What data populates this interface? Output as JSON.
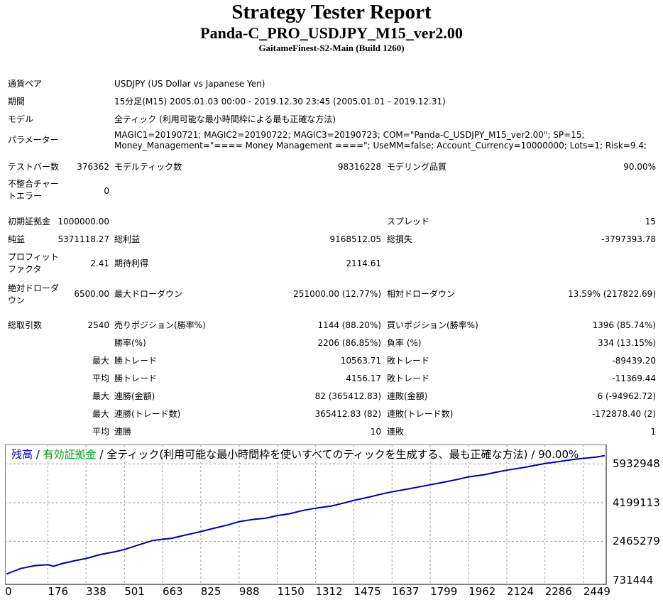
{
  "header": {
    "title": "Strategy Tester Report",
    "subtitle": "Panda-C_PRO_USDJPY_M15_ver2.00",
    "server": "GaitameFinest-S2-Main (Build 1260)"
  },
  "info": {
    "pair_label": "通貨ペア",
    "pair_value": "USDJPY (US Dollar vs Japanese Yen)",
    "period_label": "期間",
    "period_value": "15分足(M15) 2005.01.03 00:00 - 2019.12.30 23:45 (2005.01.01 - 2019.12.31)",
    "model_label": "モデル",
    "model_value": "全ティック (利用可能な最小時間枠による最も正確な方法)",
    "params_label": "パラメーター",
    "params_value": "MAGIC1=20190721; MAGIC2=20190722; MAGIC3=20190723; COM=\"Panda-C_USDJPY_M15_ver2.00\"; SP=15; Money_Management=\"==== Money Management ====\"; UseMM=false; Account_Currency=10000000; Lots=1; Risk=9.4;"
  },
  "stats": {
    "bars_label": "テストバー数",
    "bars_value": "376362",
    "ticks_label": "モデルティック数",
    "ticks_value": "98316228",
    "quality_label": "モデリング品質",
    "quality_value": "90.00%",
    "mismatch_label": "不整合チャートエラー",
    "mismatch_value": "0",
    "deposit_label": "初期証拠金",
    "deposit_value": "1000000.00",
    "spread_label": "スプレッド",
    "spread_value": "15",
    "net_label": "純益",
    "net_value": "5371118.27",
    "gross_profit_label": "総利益",
    "gross_profit_value": "9168512.05",
    "gross_loss_label": "総損失",
    "gross_loss_value": "-3797393.78",
    "pf_label": "プロフィットファクタ",
    "pf_value": "2.41",
    "expected_label": "期待利得",
    "expected_value": "2114.61",
    "abs_dd_label": "絶対ドローダウン",
    "abs_dd_value": "6500.00",
    "max_dd_label": "最大ドローダウン",
    "max_dd_value": "251000.00 (12.77%)",
    "rel_dd_label": "相対ドローダウン",
    "rel_dd_value": "13.59% (217822.69)",
    "total_trades_label": "総取引数",
    "total_trades_value": "2540",
    "short_label": "売りポジション(勝率%)",
    "short_value": "1144 (88.20%)",
    "long_label": "買いポジション(勝率%)",
    "long_value": "1396 (85.74%)",
    "win_rate_label": "勝率(%)",
    "win_rate_value": "2206 (86.85%)",
    "loss_rate_label": "負率 (%)",
    "loss_rate_value": "334 (13.15%)",
    "largest_prefix": "最大",
    "largest_win_label": "勝トレード",
    "largest_win_value": "10563.71",
    "largest_loss_label": "敗トレード",
    "largest_loss_value": "-89439.20",
    "average_prefix": "平均",
    "avg_win_label": "勝トレード",
    "avg_win_value": "4156.17",
    "avg_loss_label": "敗トレード",
    "avg_loss_value": "-11369.44",
    "max_prefix": "最大",
    "max_cons_wins_label": "連勝(金額)",
    "max_cons_wins_value": "82 (365412.83)",
    "max_cons_losses_label": "連敗(金額)",
    "max_cons_losses_value": "6 (-94962.72)",
    "max2_prefix": "最大",
    "max_cons_profit_label": "連勝(トレード数)",
    "max_cons_profit_value": "365412.83 (82)",
    "max_cons_loss_label": "連敗(トレード数)",
    "max_cons_loss_value": "-172878.40 (2)",
    "avg2_prefix": "平均",
    "avg_cons_wins_label": "連勝",
    "avg_cons_wins_value": "10",
    "avg_cons_losses_label": "連敗",
    "avg_cons_losses_value": "1"
  },
  "chart_data": {
    "type": "line",
    "legend": {
      "balance": "残高",
      "sep1": " / ",
      "equity": "有効証拠金",
      "sep2": " / ",
      "model": "全ティック(利用可能な最小時間枠を使いすべてのティックを生成する、最も正確な方法)",
      "sep3": " / ",
      "quality": "90.00%"
    },
    "y_ticks": [
      "5932948",
      "4199113",
      "2465279",
      "731444"
    ],
    "y_tick_values": [
      5932948,
      4199113,
      2465279,
      731444
    ],
    "x_ticks": [
      "0",
      "176",
      "338",
      "501",
      "663",
      "825",
      "988",
      "1150",
      "1312",
      "1475",
      "1637",
      "1799",
      "1962",
      "2124",
      "2286",
      "2449"
    ],
    "x_tick_values": [
      0,
      176,
      338,
      501,
      663,
      825,
      988,
      1150,
      1312,
      1475,
      1637,
      1799,
      1962,
      2124,
      2286,
      2449
    ],
    "xlim": [
      0,
      2540
    ],
    "ylim": [
      731444,
      6800000
    ],
    "grid": true,
    "series": [
      {
        "color": "#0000a0",
        "x": [
          0,
          60,
          120,
          176,
          200,
          240,
          300,
          338,
          400,
          460,
          501,
          560,
          620,
          663,
          700,
          760,
          825,
          880,
          940,
          988,
          1050,
          1100,
          1150,
          1200,
          1260,
          1312,
          1380,
          1440,
          1475,
          1540,
          1600,
          1637,
          1700,
          1760,
          1799,
          1860,
          1920,
          1962,
          2030,
          2080,
          2124,
          2200,
          2250,
          2286,
          2350,
          2400,
          2449,
          2500,
          2540
        ],
        "y": [
          1000000,
          1250000,
          1380000,
          1420000,
          1350000,
          1480000,
          1620000,
          1700000,
          1880000,
          2000000,
          2100000,
          2300000,
          2500000,
          2560000,
          2600000,
          2750000,
          2900000,
          3050000,
          3200000,
          3350000,
          3450000,
          3500000,
          3620000,
          3700000,
          3850000,
          3950000,
          4050000,
          4200000,
          4300000,
          4450000,
          4600000,
          4680000,
          4800000,
          4920000,
          5000000,
          5120000,
          5250000,
          5350000,
          5450000,
          5560000,
          5650000,
          5780000,
          5880000,
          5950000,
          6040000,
          6120000,
          6180000,
          6230000,
          6300000
        ]
      }
    ]
  }
}
